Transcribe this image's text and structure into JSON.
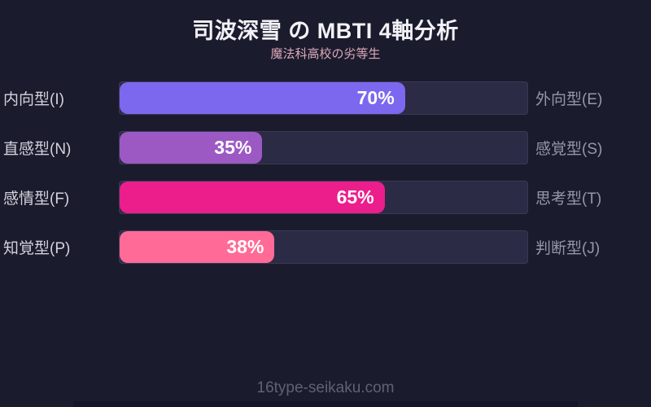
{
  "header": {
    "title": "司波深雪 の MBTI 4軸分析",
    "subtitle": "魔法科高校の劣等生"
  },
  "chart_data": {
    "type": "bar",
    "title": "司波深雪 の MBTI 4軸分析",
    "subtitle": "魔法科高校の劣等生",
    "xlim": [
      0,
      100
    ],
    "track_color": "#2b2b45",
    "background_color": "#1b1b2e",
    "axes": [
      {
        "left_label": "内向型(I)",
        "right_label": "外向型(E)",
        "value": 70,
        "value_label": "70%",
        "color": "#7b68ee"
      },
      {
        "left_label": "直感型(N)",
        "right_label": "感覚型(S)",
        "value": 35,
        "value_label": "35%",
        "color": "#9c59c4"
      },
      {
        "left_label": "感情型(F)",
        "right_label": "思考型(T)",
        "value": 65,
        "value_label": "65%",
        "color": "#eb1e8c"
      },
      {
        "left_label": "知覚型(P)",
        "right_label": "判断型(J)",
        "value": 38,
        "value_label": "38%",
        "color": "#ff6b96"
      }
    ]
  },
  "footer": {
    "site": "16type-seikaku.com"
  }
}
